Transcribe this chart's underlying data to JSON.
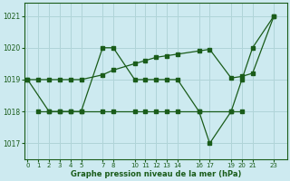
{
  "bg_color": "#cdeaf0",
  "grid_color": "#b0d4d8",
  "line_color": "#1a5c1a",
  "xlabel": "Graphe pression niveau de la mer (hPa)",
  "ylim": [
    1016.5,
    1021.4
  ],
  "xlim": [
    -0.3,
    24.2
  ],
  "yticks": [
    1017,
    1018,
    1019,
    1020,
    1021
  ],
  "xticks": [
    0,
    1,
    2,
    3,
    4,
    5,
    7,
    8,
    10,
    11,
    12,
    13,
    14,
    16,
    17,
    19,
    20,
    21,
    23
  ],
  "line1_x": [
    0,
    1,
    2,
    3,
    4,
    5,
    7,
    8,
    10,
    11,
    12,
    13,
    14,
    16,
    17,
    19,
    20,
    21,
    23
  ],
  "line1_y": [
    1019,
    1019,
    1019,
    1019,
    1019,
    1019,
    1019.15,
    1019.3,
    1019.5,
    1019.6,
    1019.7,
    1019.75,
    1019.8,
    1019.9,
    1019.95,
    1019.05,
    1019.1,
    1019.2,
    1021
  ],
  "line2_x": [
    0,
    2,
    3,
    4,
    5,
    7,
    8,
    10,
    11,
    12,
    13,
    14,
    16,
    17,
    19,
    20,
    21,
    23
  ],
  "line2_y": [
    1019,
    1018,
    1018,
    1018,
    1018,
    1020,
    1020,
    1019,
    1019,
    1019,
    1019,
    1019,
    1018,
    1017,
    1018,
    1019,
    1020,
    1021
  ],
  "line3_x": [
    1,
    2,
    3,
    4,
    5,
    7,
    8,
    10,
    11,
    12,
    13,
    14,
    16,
    19,
    20
  ],
  "line3_y": [
    1018,
    1018,
    1018,
    1018,
    1018,
    1018,
    1018,
    1018,
    1018,
    1018,
    1018,
    1018,
    1018,
    1018,
    1018
  ]
}
